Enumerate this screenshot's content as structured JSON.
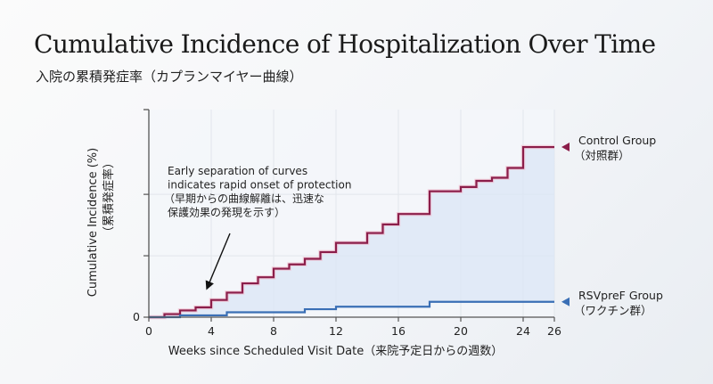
{
  "header": {
    "title": "Cumulative Incidence of Hospitalization Over Time",
    "subtitle": "入院の累積発症率（カプランマイヤー曲線）"
  },
  "colors": {
    "control": "#8b1e4a",
    "rsvpref": "#3a6fb5",
    "fill": "#dbe6f5",
    "axis": "#555555",
    "grid": "#e2e6ec"
  },
  "chart_data": {
    "type": "line",
    "step": true,
    "title": "Cumulative Incidence of Hospitalization Over Time",
    "subtitle": "入院の累積発症率（カプランマイヤー曲線）",
    "xlabel": "Weeks since Scheduled Visit Date（来院予定日からの週数）",
    "ylabel": "Cumulative Incidence (%)",
    "ylabel_jp": "（累積発症率）",
    "xlim": [
      0,
      26
    ],
    "ylim": [
      0,
      3.38
    ],
    "x_ticks": [
      0,
      4,
      8,
      12,
      16,
      20,
      24,
      26
    ],
    "y_ticks": [
      0,
      1,
      2
    ],
    "y_tick_labels": [
      "0",
      "",
      ""
    ],
    "grid": true,
    "legend_placement": "right",
    "series": [
      {
        "name": "Control Group",
        "name_jp": "（対照群）",
        "color_key": "control",
        "x": [
          0,
          1,
          2,
          3,
          4,
          5,
          6,
          7,
          8,
          9,
          10,
          11,
          12,
          14,
          15,
          16,
          18,
          20,
          21,
          22,
          23,
          24,
          26
        ],
        "y": [
          0,
          0.05,
          0.11,
          0.16,
          0.28,
          0.4,
          0.55,
          0.65,
          0.79,
          0.86,
          0.95,
          1.06,
          1.21,
          1.37,
          1.51,
          1.68,
          2.05,
          2.12,
          2.22,
          2.27,
          2.43,
          2.77,
          2.77
        ]
      },
      {
        "name": "RSVpreF Group",
        "name_jp": "（ワクチン群）",
        "color_key": "rsvpref",
        "x": [
          0,
          2,
          5,
          10,
          12,
          18,
          26
        ],
        "y": [
          0,
          0.03,
          0.08,
          0.13,
          0.17,
          0.25,
          0.25
        ]
      }
    ],
    "annotations": [
      {
        "lines": [
          "Early separation of curves",
          "indicates rapid onset of protection",
          "（早期からの曲線解離は、迅速な",
          "保護効果の発現を示す）"
        ],
        "arrow_to": {
          "x": 3.6,
          "y": 0.38
        }
      }
    ]
  }
}
